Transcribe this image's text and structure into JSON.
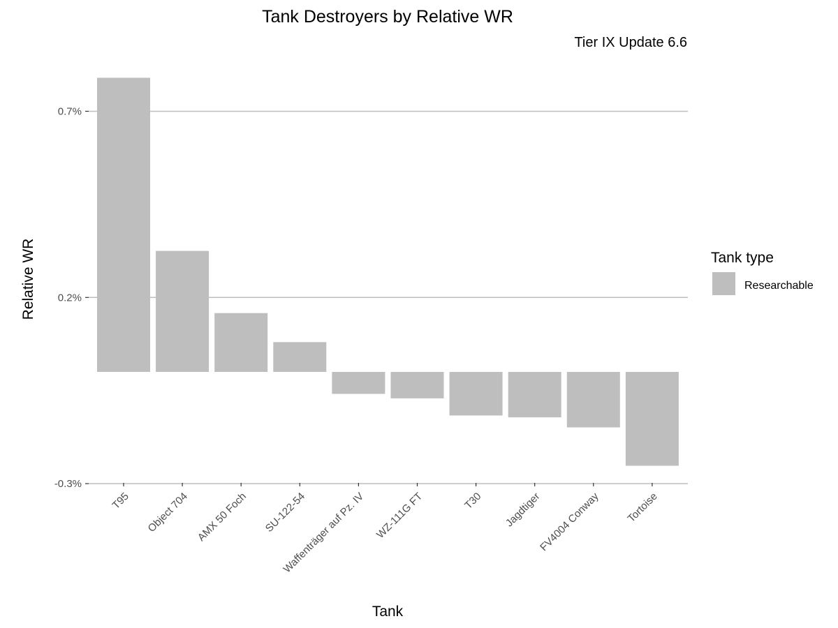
{
  "colors": {
    "bar": "#bebebe",
    "grid": "#bebebe"
  },
  "chart_data": {
    "type": "bar",
    "title": "Tank Destroyers by Relative WR",
    "subtitle": "Tier IX Update 6.6",
    "xlabel": "Tank",
    "ylabel": "Relative WR",
    "categories": [
      "T95",
      "Object 704",
      "AMX 50 Foch",
      "SU-122-54",
      "Waffenträger auf Pz. IV",
      "WZ-111G FT",
      "T30",
      "Jagdtiger",
      "FV4004 Conway",
      "Tortoise"
    ],
    "values": [
      0.79,
      0.325,
      0.158,
      0.08,
      -0.059,
      -0.071,
      -0.117,
      -0.122,
      -0.149,
      -0.252
    ],
    "value_unit": "%",
    "y_ticks": [
      -0.3,
      0.2,
      0.7
    ],
    "y_tick_labels": [
      "-0.3%",
      "0.2%",
      "0.7%"
    ],
    "ylim": [
      -0.3,
      0.79
    ],
    "grid": true,
    "legend": {
      "title": "Tank type",
      "entries": [
        "Researchable"
      ],
      "position": "right"
    }
  }
}
